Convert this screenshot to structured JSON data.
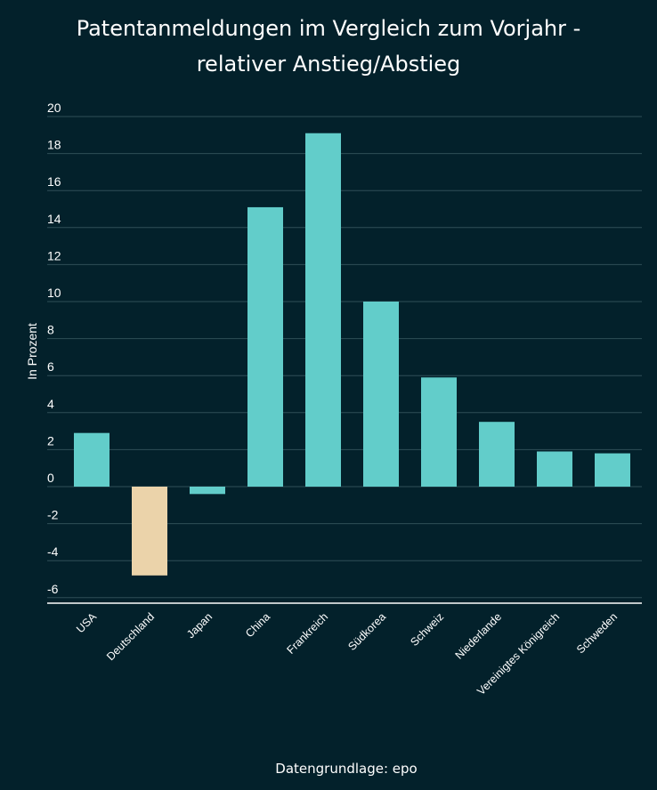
{
  "chart_data": {
    "type": "bar",
    "title_lines": [
      "Patentanmeldungen im Vergleich zum Vorjahr -",
      "relativer Anstieg/Abstieg"
    ],
    "ylabel": "In Prozent",
    "xlabel": "",
    "categories": [
      "USA",
      "Deutschland",
      "Japan",
      "China",
      "Frankreich",
      "Südkorea",
      "Schweiz",
      "Niederlande",
      "Vereinigtes Königreich",
      "Schweden"
    ],
    "values": [
      2.9,
      -4.8,
      -0.4,
      15.1,
      19.1,
      10.0,
      5.9,
      3.5,
      1.9,
      1.8
    ],
    "ylim": [
      -6.3,
      20.4
    ],
    "yticks": [
      20,
      18,
      16,
      14,
      12,
      10,
      8,
      6,
      4,
      2,
      0,
      -2,
      -4,
      -6
    ],
    "grid": true,
    "colors": {
      "positive": "#62cdca",
      "negative": "#ebd3aa",
      "background": "#03212b"
    },
    "source": "Datengrundlage: epo"
  }
}
